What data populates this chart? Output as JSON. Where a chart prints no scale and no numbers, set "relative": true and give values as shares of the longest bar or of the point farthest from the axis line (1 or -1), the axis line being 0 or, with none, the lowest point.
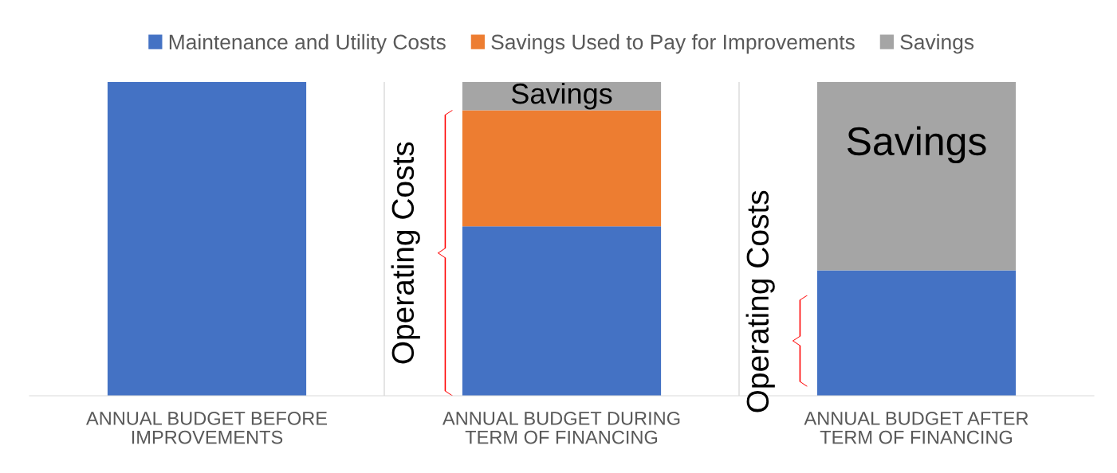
{
  "chart_data": {
    "type": "bar",
    "relative": true,
    "stacked": true,
    "legend": "top",
    "grid": "x",
    "categories": [
      "ANNUAL BUDGET BEFORE\nIMPROVEMENTS",
      "ANNUAL BUDGET DURING\nTERM OF FINANCING",
      "ANNUAL BUDGET AFTER\nTERM OF FINANCING"
    ],
    "series": [
      {
        "name": "Maintenance and Utility Costs",
        "color": "#4472c4",
        "values": [
          1,
          0.54,
          0.4
        ]
      },
      {
        "name": "Savings Used to Pay for Improvements",
        "color": "#ed7d31",
        "values": [
          0,
          0.37,
          0
        ]
      },
      {
        "name": "Savings",
        "color": "#a5a5a5",
        "values": [
          0,
          0.09,
          0.6
        ]
      }
    ],
    "annotations": [
      "Savings",
      "Savings",
      "Operating Costs",
      "Operating Costs"
    ]
  }
}
